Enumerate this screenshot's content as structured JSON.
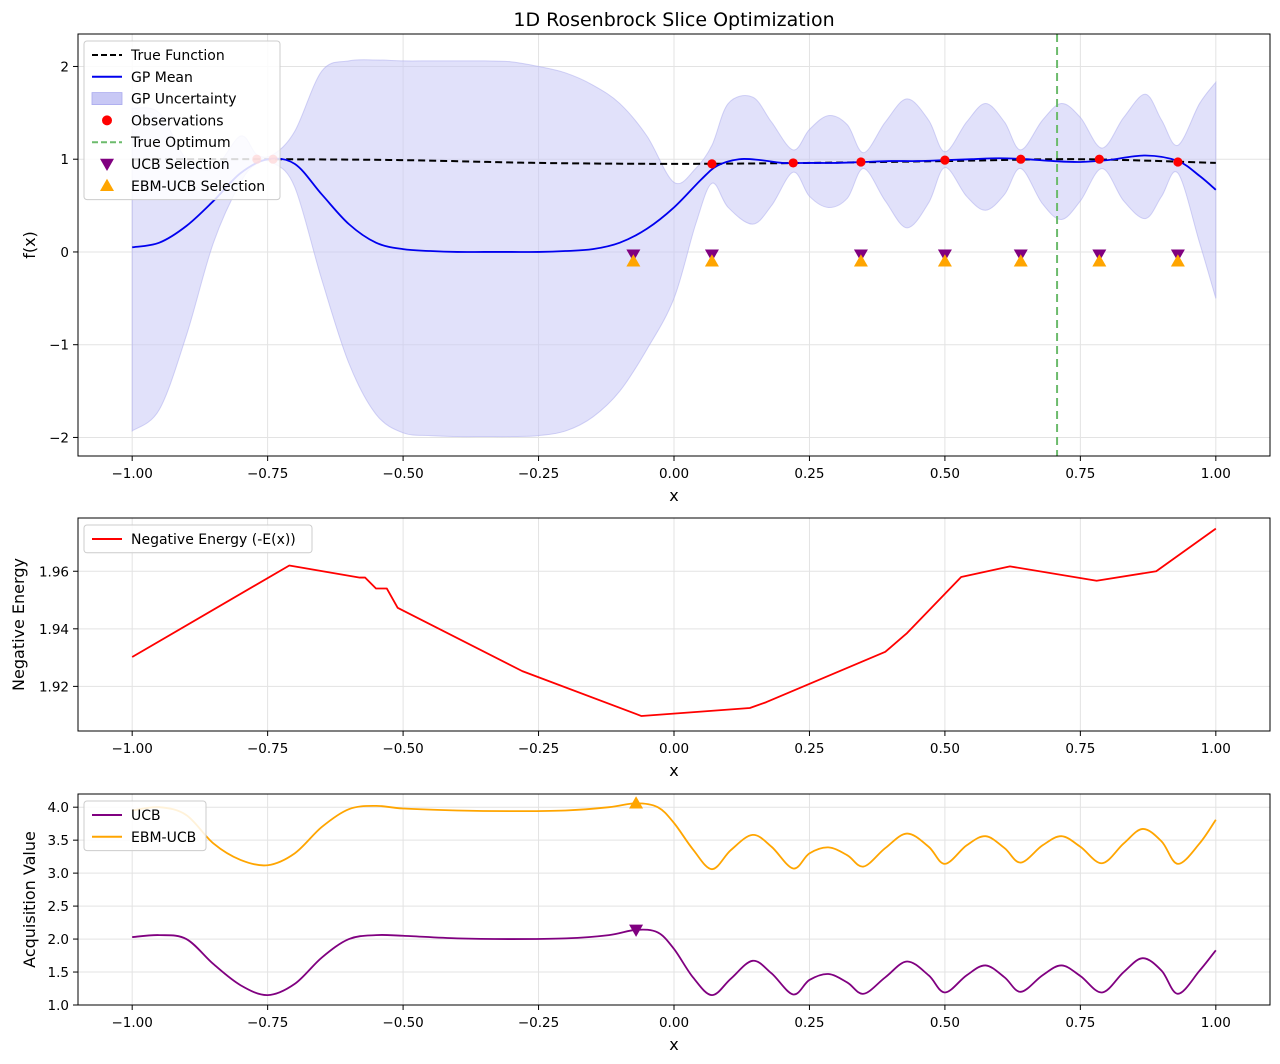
{
  "figure": {
    "title": "1D Rosenbrock Slice Optimization"
  },
  "chart_data": [
    {
      "type": "line",
      "title": "1D Rosenbrock Slice Optimization",
      "xlabel": "x",
      "ylabel": "f(x)",
      "xlim": [
        -1.1,
        1.1
      ],
      "ylim": [
        -2.2,
        2.35
      ],
      "xticks": [
        -1.0,
        -0.75,
        -0.5,
        -0.25,
        0.0,
        0.25,
        0.5,
        0.75,
        1.0
      ],
      "xtick_labels": [
        "−1.00",
        "−0.75",
        "−0.50",
        "−0.25",
        "0.00",
        "0.25",
        "0.50",
        "0.75",
        "1.00"
      ],
      "yticks": [
        -2,
        -1,
        0,
        1,
        2
      ],
      "ytick_labels": [
        "−2",
        "−1",
        "0",
        "1",
        "2"
      ],
      "grid": true,
      "legend_position": "upper-left",
      "legend": [
        {
          "label": "True Function",
          "kind": "dashed-line",
          "color": "#000000"
        },
        {
          "label": "GP Mean",
          "kind": "line",
          "color": "#0000ee"
        },
        {
          "label": "GP Uncertainty",
          "kind": "patch",
          "color": "#c8c8f5"
        },
        {
          "label": "Observations",
          "kind": "circle",
          "color": "#ff0000"
        },
        {
          "label": "True Optimum",
          "kind": "dashed-line",
          "color": "#6cbb6c"
        },
        {
          "label": "UCB Selection",
          "kind": "triangle-down",
          "color": "#800080"
        },
        {
          "label": "EBM-UCB Selection",
          "kind": "triangle-up",
          "color": "#ffa500"
        }
      ],
      "series": [
        {
          "name": "True Function",
          "color": "#000000",
          "dashed": true,
          "x": [
            -1.0,
            -0.75,
            -0.5,
            -0.25,
            0.0,
            0.25,
            0.5,
            0.75,
            1.0
          ],
          "y": [
            1.0,
            1.0,
            0.99,
            0.96,
            0.95,
            0.96,
            0.98,
            1.0,
            0.96
          ]
        },
        {
          "name": "GP Mean",
          "color": "#0000ee",
          "x": [
            -1.0,
            -0.95,
            -0.9,
            -0.85,
            -0.8,
            -0.75,
            -0.7,
            -0.65,
            -0.6,
            -0.55,
            -0.5,
            -0.45,
            -0.4,
            -0.35,
            -0.3,
            -0.25,
            -0.2,
            -0.15,
            -0.1,
            -0.05,
            0.0,
            0.05,
            0.08,
            0.12,
            0.16,
            0.2,
            0.25,
            0.3,
            0.35,
            0.4,
            0.45,
            0.5,
            0.55,
            0.6,
            0.65,
            0.7,
            0.75,
            0.8,
            0.87,
            0.93,
            0.97,
            1.0
          ],
          "y": [
            0.05,
            0.1,
            0.28,
            0.55,
            0.85,
            1.0,
            0.95,
            0.62,
            0.3,
            0.1,
            0.03,
            0.01,
            0.0,
            0.0,
            0.0,
            0.0,
            0.01,
            0.03,
            0.1,
            0.25,
            0.48,
            0.78,
            0.93,
            1.0,
            0.99,
            0.96,
            0.96,
            0.96,
            0.97,
            0.98,
            0.98,
            0.99,
            1.0,
            1.01,
            1.0,
            0.98,
            0.97,
            0.99,
            1.04,
            0.98,
            0.82,
            0.67
          ]
        },
        {
          "name": "GP Uncertainty",
          "color": "#c8c8f5",
          "band": true,
          "x": [
            -1.0,
            -0.95,
            -0.9,
            -0.85,
            -0.8,
            -0.77,
            -0.74,
            -0.7,
            -0.65,
            -0.6,
            -0.55,
            -0.5,
            -0.45,
            -0.4,
            -0.35,
            -0.3,
            -0.25,
            -0.2,
            -0.15,
            -0.1,
            -0.05,
            0.0,
            0.04,
            0.07,
            0.1,
            0.145,
            0.18,
            0.22,
            0.25,
            0.285,
            0.32,
            0.35,
            0.39,
            0.43,
            0.47,
            0.5,
            0.54,
            0.575,
            0.61,
            0.64,
            0.68,
            0.715,
            0.75,
            0.79,
            0.83,
            0.87,
            0.9,
            0.93,
            0.97,
            1.0
          ],
          "lower": [
            -1.93,
            -1.7,
            -0.9,
            0.1,
            0.75,
            0.95,
            0.96,
            0.7,
            -0.3,
            -1.2,
            -1.75,
            -1.95,
            -1.98,
            -1.99,
            -1.99,
            -1.99,
            -1.98,
            -1.93,
            -1.78,
            -1.5,
            -1.05,
            -0.5,
            0.3,
            0.74,
            0.48,
            0.3,
            0.5,
            0.86,
            0.6,
            0.48,
            0.58,
            0.9,
            0.55,
            0.26,
            0.53,
            0.91,
            0.6,
            0.45,
            0.62,
            0.9,
            0.52,
            0.35,
            0.55,
            0.9,
            0.55,
            0.36,
            0.6,
            0.85,
            0.1,
            -0.5
          ],
          "upper": [
            1.55,
            1.5,
            1.0,
            0.9,
            1.25,
            1.05,
            1.05,
            1.3,
            1.95,
            2.06,
            2.07,
            2.06,
            2.06,
            2.06,
            2.06,
            2.05,
            2.0,
            1.93,
            1.8,
            1.6,
            1.25,
            0.75,
            0.9,
            1.15,
            1.6,
            1.67,
            1.4,
            1.1,
            1.32,
            1.47,
            1.37,
            1.07,
            1.4,
            1.65,
            1.42,
            1.08,
            1.4,
            1.6,
            1.4,
            1.1,
            1.42,
            1.6,
            1.45,
            1.12,
            1.45,
            1.7,
            1.42,
            1.15,
            1.6,
            1.83
          ]
        }
      ],
      "observations": {
        "name": "Observations",
        "color": "#ff0000",
        "x": [
          -0.77,
          -0.74,
          0.07,
          0.22,
          0.345,
          0.5,
          0.64,
          0.785,
          0.93
        ],
        "y": [
          1.0,
          1.0,
          0.95,
          0.96,
          0.97,
          0.99,
          1.0,
          1.0,
          0.97
        ]
      },
      "true_optimum": {
        "name": "True Optimum",
        "x": 0.707,
        "color": "#6cbb6c"
      },
      "ucb_selections": {
        "name": "UCB Selection",
        "color": "#800080",
        "x": [
          -0.075,
          0.07,
          0.345,
          0.5,
          0.64,
          0.785,
          0.93
        ],
        "y": [
          -0.03,
          -0.03,
          -0.03,
          -0.03,
          -0.03,
          -0.03,
          -0.03
        ]
      },
      "ebm_ucb_selections": {
        "name": "EBM-UCB Selection",
        "color": "#ffa500",
        "x": [
          -0.075,
          0.07,
          0.345,
          0.5,
          0.64,
          0.785,
          0.93
        ],
        "y": [
          -0.1,
          -0.1,
          -0.1,
          -0.1,
          -0.1,
          -0.1,
          -0.1
        ]
      }
    },
    {
      "type": "line",
      "title": "",
      "xlabel": "x",
      "ylabel": "Negative Energy",
      "xlim": [
        -1.1,
        1.1
      ],
      "ylim": [
        1.9045,
        1.9785
      ],
      "xticks": [
        -1.0,
        -0.75,
        -0.5,
        -0.25,
        0.0,
        0.25,
        0.5,
        0.75,
        1.0
      ],
      "xtick_labels": [
        "−1.00",
        "−0.75",
        "−0.50",
        "−0.25",
        "0.00",
        "0.25",
        "0.50",
        "0.75",
        "1.00"
      ],
      "yticks": [
        1.92,
        1.94,
        1.96
      ],
      "ytick_labels": [
        "1.92",
        "1.94",
        "1.96"
      ],
      "grid": true,
      "legend_position": "upper-left",
      "legend": [
        {
          "label": "Negative Energy (-E(x))",
          "kind": "line",
          "color": "#ff0000"
        }
      ],
      "series": [
        {
          "name": "Negative Energy (-E(x))",
          "color": "#ff0000",
          "x": [
            -1.0,
            -0.71,
            -0.58,
            -0.57,
            -0.55,
            -0.53,
            -0.51,
            -0.28,
            -0.06,
            0.14,
            0.17,
            0.39,
            0.43,
            0.53,
            0.62,
            0.78,
            0.89,
            1.0
          ],
          "y": [
            1.9302,
            1.962,
            1.9578,
            1.9578,
            1.954,
            1.954,
            1.9473,
            1.9253,
            1.9097,
            1.9125,
            1.9145,
            1.932,
            1.9385,
            1.958,
            1.9617,
            1.9567,
            1.96,
            1.9748
          ]
        }
      ]
    },
    {
      "type": "line",
      "title": "",
      "xlabel": "x",
      "ylabel": "Acquisition Value",
      "xlim": [
        -1.1,
        1.1
      ],
      "ylim": [
        1.0,
        4.2
      ],
      "xticks": [
        -1.0,
        -0.75,
        -0.5,
        -0.25,
        0.0,
        0.25,
        0.5,
        0.75,
        1.0
      ],
      "xtick_labels": [
        "−1.00",
        "−0.75",
        "−0.50",
        "−0.25",
        "0.00",
        "0.25",
        "0.50",
        "0.75",
        "1.00"
      ],
      "yticks": [
        1.0,
        1.5,
        2.0,
        2.5,
        3.0,
        3.5,
        4.0
      ],
      "ytick_labels": [
        "1.0",
        "1.5",
        "2.0",
        "2.5",
        "3.0",
        "3.5",
        "4.0"
      ],
      "grid": true,
      "legend_position": "upper-left",
      "legend": [
        {
          "label": "UCB",
          "kind": "line",
          "color": "#800080"
        },
        {
          "label": "EBM-UCB",
          "kind": "line",
          "color": "#ffa500"
        }
      ],
      "series": [
        {
          "name": "UCB",
          "color": "#800080",
          "x": [
            -1.0,
            -0.95,
            -0.9,
            -0.85,
            -0.8,
            -0.75,
            -0.7,
            -0.65,
            -0.6,
            -0.55,
            -0.5,
            -0.4,
            -0.3,
            -0.2,
            -0.12,
            -0.07,
            -0.03,
            0.0,
            0.035,
            0.07,
            0.105,
            0.145,
            0.18,
            0.22,
            0.25,
            0.285,
            0.32,
            0.35,
            0.39,
            0.43,
            0.47,
            0.5,
            0.54,
            0.575,
            0.61,
            0.64,
            0.68,
            0.715,
            0.75,
            0.79,
            0.83,
            0.865,
            0.9,
            0.93,
            0.97,
            1.0
          ],
          "y": [
            2.03,
            2.06,
            2.0,
            1.62,
            1.3,
            1.15,
            1.32,
            1.72,
            2.0,
            2.06,
            2.05,
            2.01,
            2.0,
            2.01,
            2.06,
            2.14,
            2.1,
            1.85,
            1.42,
            1.15,
            1.4,
            1.67,
            1.48,
            1.16,
            1.38,
            1.47,
            1.34,
            1.17,
            1.42,
            1.66,
            1.45,
            1.19,
            1.45,
            1.6,
            1.42,
            1.2,
            1.45,
            1.6,
            1.44,
            1.19,
            1.5,
            1.71,
            1.52,
            1.17,
            1.52,
            1.83
          ]
        },
        {
          "name": "EBM-UCB",
          "color": "#ffa500",
          "x": [
            -1.0,
            -0.95,
            -0.9,
            -0.85,
            -0.8,
            -0.75,
            -0.7,
            -0.65,
            -0.6,
            -0.55,
            -0.5,
            -0.4,
            -0.3,
            -0.2,
            -0.12,
            -0.07,
            -0.03,
            0.0,
            0.035,
            0.07,
            0.105,
            0.145,
            0.18,
            0.22,
            0.25,
            0.285,
            0.32,
            0.35,
            0.39,
            0.43,
            0.47,
            0.5,
            0.54,
            0.575,
            0.61,
            0.64,
            0.68,
            0.715,
            0.75,
            0.79,
            0.83,
            0.865,
            0.9,
            0.93,
            0.97,
            1.0
          ],
          "y": [
            3.95,
            4.0,
            3.88,
            3.45,
            3.2,
            3.12,
            3.3,
            3.7,
            3.97,
            4.02,
            3.98,
            3.95,
            3.94,
            3.95,
            4.0,
            4.06,
            4.0,
            3.76,
            3.36,
            3.06,
            3.35,
            3.58,
            3.4,
            3.07,
            3.3,
            3.39,
            3.27,
            3.1,
            3.38,
            3.6,
            3.4,
            3.14,
            3.42,
            3.56,
            3.38,
            3.16,
            3.42,
            3.56,
            3.4,
            3.15,
            3.45,
            3.67,
            3.48,
            3.14,
            3.45,
            3.81
          ]
        }
      ],
      "selection_markers": [
        {
          "name": "UCB selection",
          "x": -0.07,
          "y": 2.14,
          "shape": "triangle-down",
          "color": "#800080"
        },
        {
          "name": "EBM-UCB selection",
          "x": -0.07,
          "y": 4.06,
          "shape": "triangle-up",
          "color": "#ffa500"
        }
      ]
    }
  ]
}
